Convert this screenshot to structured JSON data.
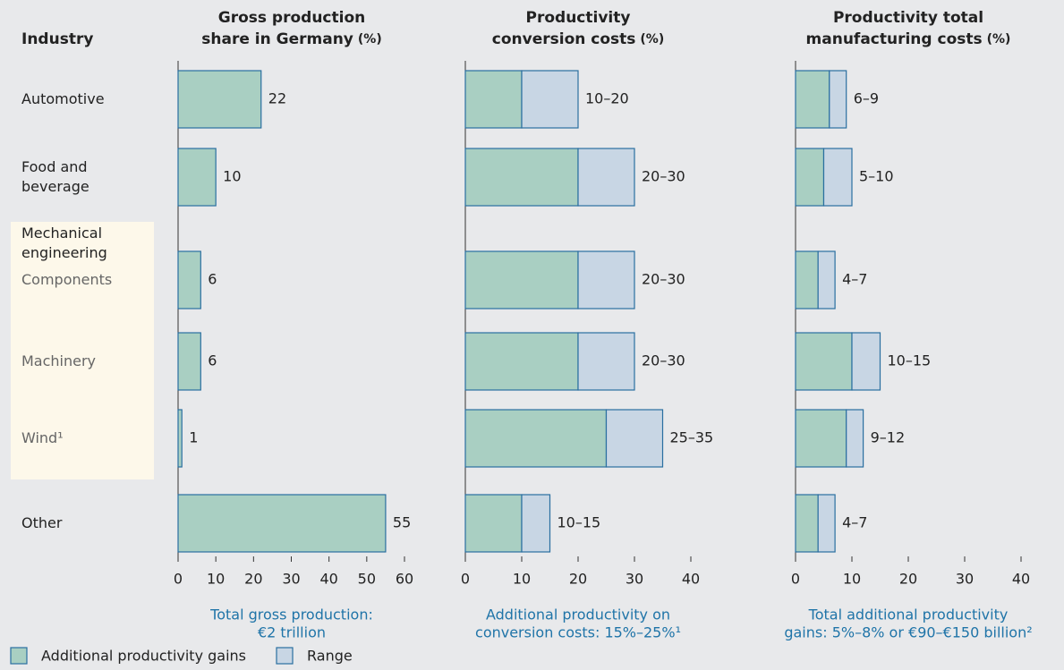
{
  "row_header": "Industry",
  "categories": [
    "Automotive",
    "Food and beverage",
    "Components",
    "Machinery",
    "Wind¹",
    "Other"
  ],
  "groups": [
    {
      "label": "Mechanical engineering",
      "members": [
        2,
        3,
        4
      ]
    }
  ],
  "chart_data": [
    {
      "type": "bar",
      "orientation": "horizontal",
      "title_lines": [
        "Gross production",
        "share in Germany"
      ],
      "unit": "(%)",
      "series": [
        {
          "name": "Additional productivity gains",
          "color": "#a9cfc2",
          "values": [
            22,
            10,
            6,
            6,
            1,
            55
          ]
        }
      ],
      "xlim": [
        0,
        60
      ],
      "xticks": [
        0,
        10,
        20,
        30,
        40,
        50,
        60
      ],
      "footnote_lines": [
        "Total gross production:",
        "€2 trillion"
      ]
    },
    {
      "type": "stacked_bar",
      "orientation": "horizontal",
      "title_lines": [
        "Productivity",
        "conversion costs"
      ],
      "unit": "(%)",
      "series": [
        {
          "name": "Additional productivity gains",
          "color": "#a9cfc2",
          "values": [
            10,
            20,
            20,
            20,
            25,
            10
          ]
        },
        {
          "name": "Range",
          "color": "#c8d6e4",
          "values": [
            10,
            10,
            10,
            10,
            10,
            5
          ]
        }
      ],
      "value_labels": [
        "10–20",
        "20–30",
        "20–30",
        "20–30",
        "25–35",
        "10–15"
      ],
      "xlim": [
        0,
        40
      ],
      "xticks": [
        0,
        10,
        20,
        30,
        40
      ],
      "footnote_lines": [
        "Additional productivity on",
        "conversion costs: 15%–25%¹"
      ]
    },
    {
      "type": "stacked_bar",
      "orientation": "horizontal",
      "title_lines": [
        "Productivity total",
        "manufacturing costs"
      ],
      "unit": "(%)",
      "series": [
        {
          "name": "Additional productivity gains",
          "color": "#a9cfc2",
          "values": [
            6,
            5,
            4,
            10,
            9,
            4
          ]
        },
        {
          "name": "Range",
          "color": "#c8d6e4",
          "values": [
            3,
            5,
            3,
            5,
            3,
            3
          ]
        }
      ],
      "value_labels": [
        "6–9",
        "5–10",
        "4–7",
        "10–15",
        "9–12",
        "4–7"
      ],
      "xlim": [
        0,
        40
      ],
      "xticks": [
        0,
        10,
        20,
        30,
        40
      ],
      "footnote_lines": [
        "Total additional productivity",
        "gains: 5%–8% or €90–€150 billion²"
      ]
    }
  ]
}
